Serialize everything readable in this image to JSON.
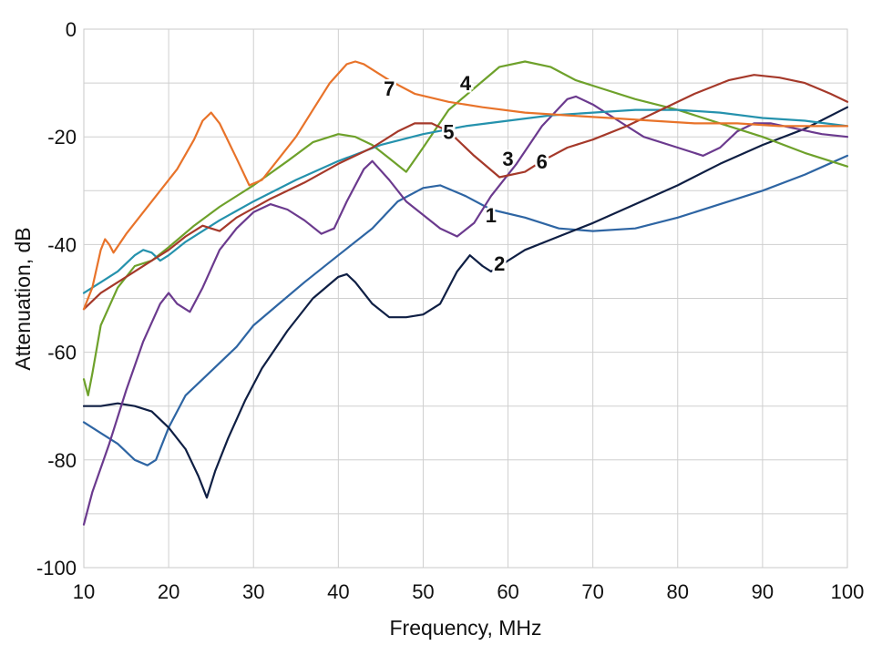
{
  "chart_data": {
    "type": "line",
    "xlabel": "Frequency, MHz",
    "ylabel": "Attenuation, dB",
    "xlim": [
      10,
      100
    ],
    "ylim": [
      -100,
      0
    ],
    "x_ticks": [
      "10",
      "20",
      "30",
      "40",
      "50",
      "60",
      "70",
      "80",
      "90",
      "100"
    ],
    "y_ticks": [
      "0",
      "-20",
      "-40",
      "-60",
      "-80",
      "-100"
    ],
    "grid": true,
    "series": [
      {
        "label": "1",
        "color": "#2e65a3",
        "label_point": [
          58,
          -34.5
        ],
        "points": [
          [
            10,
            -73
          ],
          [
            12,
            -75
          ],
          [
            14,
            -77
          ],
          [
            16,
            -80
          ],
          [
            17.5,
            -81
          ],
          [
            18.5,
            -80
          ],
          [
            20,
            -74
          ],
          [
            22,
            -68
          ],
          [
            24,
            -65
          ],
          [
            26,
            -62
          ],
          [
            28,
            -59
          ],
          [
            30,
            -55
          ],
          [
            33,
            -51
          ],
          [
            36,
            -47
          ],
          [
            40,
            -42
          ],
          [
            44,
            -37
          ],
          [
            47,
            -32
          ],
          [
            50,
            -29.5
          ],
          [
            52,
            -29
          ],
          [
            55,
            -31
          ],
          [
            58,
            -33.5
          ],
          [
            62,
            -35
          ],
          [
            66,
            -37
          ],
          [
            70,
            -37.5
          ],
          [
            75,
            -37
          ],
          [
            80,
            -35
          ],
          [
            85,
            -32.5
          ],
          [
            90,
            -30
          ],
          [
            95,
            -27
          ],
          [
            100,
            -23.5
          ]
        ]
      },
      {
        "label": "2",
        "color": "#0f1f44",
        "label_point": [
          59,
          -43.5
        ],
        "points": [
          [
            10,
            -70
          ],
          [
            12,
            -70
          ],
          [
            14,
            -69.5
          ],
          [
            16,
            -70
          ],
          [
            18,
            -71
          ],
          [
            20,
            -74
          ],
          [
            22,
            -78
          ],
          [
            23.5,
            -83
          ],
          [
            24.5,
            -87
          ],
          [
            25.5,
            -82
          ],
          [
            27,
            -76
          ],
          [
            29,
            -69
          ],
          [
            31,
            -63
          ],
          [
            34,
            -56
          ],
          [
            37,
            -50
          ],
          [
            40,
            -46
          ],
          [
            41,
            -45.5
          ],
          [
            42,
            -47
          ],
          [
            44,
            -51
          ],
          [
            46,
            -53.5
          ],
          [
            48,
            -53.5
          ],
          [
            50,
            -53
          ],
          [
            52,
            -51
          ],
          [
            54,
            -45
          ],
          [
            55.5,
            -42
          ],
          [
            57,
            -44
          ],
          [
            58,
            -45
          ],
          [
            59,
            -44
          ],
          [
            62,
            -41
          ],
          [
            66,
            -38.5
          ],
          [
            70,
            -36
          ],
          [
            75,
            -32.5
          ],
          [
            80,
            -29
          ],
          [
            85,
            -25
          ],
          [
            90,
            -21.5
          ],
          [
            95,
            -18.5
          ],
          [
            100,
            -14.5
          ]
        ]
      },
      {
        "label": "3",
        "color": "#6b3a8e",
        "label_point": [
          60,
          -24
        ],
        "points": [
          [
            10,
            -92
          ],
          [
            11,
            -86
          ],
          [
            13,
            -77
          ],
          [
            15,
            -67
          ],
          [
            17,
            -58
          ],
          [
            19,
            -51
          ],
          [
            20,
            -49
          ],
          [
            21,
            -51
          ],
          [
            22.5,
            -52.5
          ],
          [
            24,
            -48
          ],
          [
            26,
            -41
          ],
          [
            28,
            -37
          ],
          [
            30,
            -34
          ],
          [
            32,
            -32.5
          ],
          [
            34,
            -33.5
          ],
          [
            36,
            -35.5
          ],
          [
            38,
            -38
          ],
          [
            39.5,
            -37
          ],
          [
            41,
            -32
          ],
          [
            43,
            -26
          ],
          [
            44,
            -24.5
          ],
          [
            46,
            -28
          ],
          [
            48,
            -32
          ],
          [
            50,
            -34.5
          ],
          [
            52,
            -37
          ],
          [
            54,
            -38.5
          ],
          [
            56,
            -36
          ],
          [
            58,
            -31
          ],
          [
            61,
            -25
          ],
          [
            64,
            -18
          ],
          [
            67,
            -13
          ],
          [
            68,
            -12.5
          ],
          [
            70,
            -14
          ],
          [
            73,
            -17
          ],
          [
            76,
            -20
          ],
          [
            80,
            -22
          ],
          [
            83,
            -23.5
          ],
          [
            85,
            -22
          ],
          [
            87,
            -19
          ],
          [
            89,
            -17.5
          ],
          [
            91,
            -17.5
          ],
          [
            94,
            -18.5
          ],
          [
            97,
            -19.5
          ],
          [
            100,
            -20
          ]
        ]
      },
      {
        "label": "4",
        "color": "#6ea12b",
        "label_point": [
          55,
          -10
        ],
        "points": [
          [
            10,
            -65
          ],
          [
            10.5,
            -68
          ],
          [
            11,
            -64
          ],
          [
            12,
            -55
          ],
          [
            14,
            -48
          ],
          [
            16,
            -44
          ],
          [
            17,
            -43.5
          ],
          [
            18,
            -43
          ],
          [
            20,
            -40.5
          ],
          [
            23,
            -36.5
          ],
          [
            26,
            -33
          ],
          [
            30,
            -29
          ],
          [
            34,
            -24.5
          ],
          [
            37,
            -21
          ],
          [
            40,
            -19.5
          ],
          [
            42,
            -20
          ],
          [
            44,
            -21.5
          ],
          [
            46,
            -24
          ],
          [
            48,
            -26.5
          ],
          [
            50,
            -22
          ],
          [
            53,
            -15
          ],
          [
            56,
            -11
          ],
          [
            59,
            -7
          ],
          [
            62,
            -6
          ],
          [
            65,
            -7
          ],
          [
            68,
            -9.5
          ],
          [
            71,
            -11
          ],
          [
            75,
            -13
          ],
          [
            80,
            -15
          ],
          [
            85,
            -17.5
          ],
          [
            90,
            -20
          ],
          [
            95,
            -23
          ],
          [
            100,
            -25.5
          ]
        ]
      },
      {
        "label": "5",
        "color": "#2592ad",
        "label_point": [
          53,
          -19
        ],
        "points": [
          [
            10,
            -49
          ],
          [
            12,
            -47
          ],
          [
            14,
            -45
          ],
          [
            16,
            -42
          ],
          [
            17,
            -41
          ],
          [
            18,
            -41.5
          ],
          [
            19,
            -43
          ],
          [
            20,
            -42
          ],
          [
            22,
            -39.5
          ],
          [
            26,
            -35.5
          ],
          [
            30,
            -32
          ],
          [
            35,
            -28
          ],
          [
            40,
            -24.5
          ],
          [
            45,
            -21.5
          ],
          [
            50,
            -19.5
          ],
          [
            55,
            -18
          ],
          [
            60,
            -17
          ],
          [
            65,
            -16
          ],
          [
            70,
            -15.5
          ],
          [
            75,
            -15
          ],
          [
            80,
            -15
          ],
          [
            85,
            -15.5
          ],
          [
            90,
            -16.5
          ],
          [
            95,
            -17
          ],
          [
            100,
            -18
          ]
        ]
      },
      {
        "label": "6",
        "color": "#a5392a",
        "label_point": [
          64,
          -24.5
        ],
        "points": [
          [
            10,
            -52
          ],
          [
            12,
            -49
          ],
          [
            14,
            -47
          ],
          [
            16,
            -45
          ],
          [
            18,
            -43
          ],
          [
            20,
            -41
          ],
          [
            22,
            -38.5
          ],
          [
            24,
            -36.5
          ],
          [
            25,
            -37
          ],
          [
            26,
            -37.5
          ],
          [
            28,
            -35
          ],
          [
            32,
            -31.5
          ],
          [
            36,
            -28.5
          ],
          [
            40,
            -25
          ],
          [
            44,
            -22
          ],
          [
            47,
            -19
          ],
          [
            49,
            -17.5
          ],
          [
            51,
            -17.5
          ],
          [
            53,
            -19
          ],
          [
            56,
            -23.5
          ],
          [
            59,
            -27.5
          ],
          [
            62,
            -26.5
          ],
          [
            64,
            -24.5
          ],
          [
            67,
            -22
          ],
          [
            70,
            -20.5
          ],
          [
            74,
            -18
          ],
          [
            78,
            -15
          ],
          [
            82,
            -12
          ],
          [
            86,
            -9.5
          ],
          [
            89,
            -8.5
          ],
          [
            92,
            -9
          ],
          [
            95,
            -10
          ],
          [
            98,
            -12
          ],
          [
            100,
            -13.5
          ]
        ]
      },
      {
        "label": "7",
        "color": "#e8732a",
        "label_point": [
          46,
          -11
        ],
        "points": [
          [
            10,
            -52
          ],
          [
            11,
            -48
          ],
          [
            12,
            -41
          ],
          [
            12.5,
            -39
          ],
          [
            13,
            -40
          ],
          [
            13.5,
            -41.5
          ],
          [
            15,
            -38
          ],
          [
            17,
            -34
          ],
          [
            19,
            -30
          ],
          [
            21,
            -26
          ],
          [
            23,
            -20.5
          ],
          [
            24,
            -17
          ],
          [
            25,
            -15.5
          ],
          [
            26,
            -17.5
          ],
          [
            28,
            -24
          ],
          [
            29.5,
            -29
          ],
          [
            31,
            -28
          ],
          [
            33,
            -24
          ],
          [
            35,
            -20
          ],
          [
            37,
            -15
          ],
          [
            39,
            -10
          ],
          [
            41,
            -6.5
          ],
          [
            42,
            -6
          ],
          [
            43,
            -6.5
          ],
          [
            44,
            -7.5
          ],
          [
            46,
            -9.5
          ],
          [
            49,
            -12
          ],
          [
            53,
            -13.5
          ],
          [
            57,
            -14.5
          ],
          [
            62,
            -15.5
          ],
          [
            67,
            -16
          ],
          [
            72,
            -16.5
          ],
          [
            77,
            -17
          ],
          [
            82,
            -17.5
          ],
          [
            87,
            -17.5
          ],
          [
            92,
            -18
          ],
          [
            96,
            -18
          ],
          [
            100,
            -18
          ]
        ]
      }
    ]
  }
}
